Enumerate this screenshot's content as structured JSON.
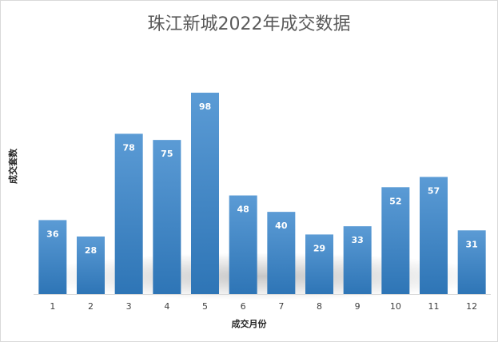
{
  "chart_data": {
    "type": "bar",
    "title": "珠江新城2022年成交数据",
    "xlabel": "成交月份",
    "ylabel": "成交套数",
    "categories": [
      "1",
      "2",
      "3",
      "4",
      "5",
      "6",
      "7",
      "8",
      "9",
      "10",
      "11",
      "12"
    ],
    "values": [
      36,
      28,
      78,
      75,
      98,
      48,
      40,
      29,
      33,
      52,
      57,
      31
    ],
    "ylim": [
      0,
      100
    ],
    "grid": false,
    "legend": "none",
    "colors": {
      "bar_top": "#5b9bd5",
      "bar_bottom": "#2e75b6",
      "label": "#ffffff",
      "axis": "#d9d9d9",
      "tick": "#404040",
      "title": "#595959"
    }
  }
}
